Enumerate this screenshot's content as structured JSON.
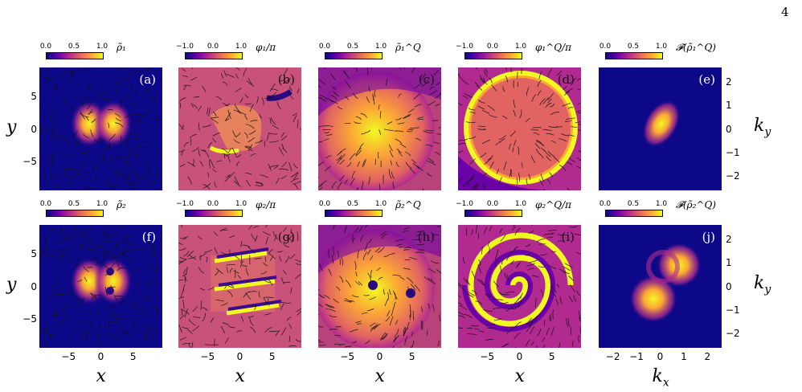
{
  "page_number": "4",
  "figure": {
    "colormap_stops": [
      "#0d0887",
      "#6a00a8",
      "#b12a90",
      "#e16462",
      "#fca636",
      "#f0f921"
    ],
    "colorbars": [
      {
        "ticks": [
          "0.0",
          "0.5",
          "1.0"
        ],
        "title": "ρ̃₁"
      },
      {
        "ticks": [
          "−1.0",
          "0.0",
          "1.0"
        ],
        "title": "φ₁/π"
      },
      {
        "ticks": [
          "0.0",
          "0.5",
          "1.0"
        ],
        "title": "ρ̃₁^Q"
      },
      {
        "ticks": [
          "−1.0",
          "0.0",
          "1.0"
        ],
        "title": "φ₁^Q/π"
      },
      {
        "ticks": [
          "0.0",
          "0.5",
          "1.0"
        ],
        "title": "𝓕(ρ̃₁^Q)"
      },
      {
        "ticks": [
          "0.0",
          "0.5",
          "1.0"
        ],
        "title": "ρ̃₂"
      },
      {
        "ticks": [
          "−1.0",
          "0.0",
          "1.0"
        ],
        "title": "φ₂/π"
      },
      {
        "ticks": [
          "0.0",
          "0.5",
          "1.0"
        ],
        "title": "ρ̃₂^Q"
      },
      {
        "ticks": [
          "−1.0",
          "0.0",
          "1.0"
        ],
        "title": "φ₂^Q/π"
      },
      {
        "ticks": [
          "0.0",
          "0.5",
          "1.0"
        ],
        "title": "𝓕(ρ̃₂^Q)"
      }
    ],
    "panel_labels": [
      "(a)",
      "(b)",
      "(c)",
      "(d)",
      "(e)",
      "(f)",
      "(g)",
      "(h)",
      "(i)",
      "(j)"
    ],
    "x_ticks": [
      "−5",
      "0",
      "5"
    ],
    "y_ticks": [
      "5",
      "0",
      "−5"
    ],
    "k_ticks": [
      "−2",
      "−1",
      "0",
      "1",
      "2"
    ],
    "ky_ticks": [
      "2",
      "1",
      "0",
      "−1",
      "−2"
    ],
    "x_label": "x",
    "y_label": "y",
    "kx_label": "k",
    "kx_sub": "x",
    "ky_label": "k",
    "ky_sub": "y"
  }
}
